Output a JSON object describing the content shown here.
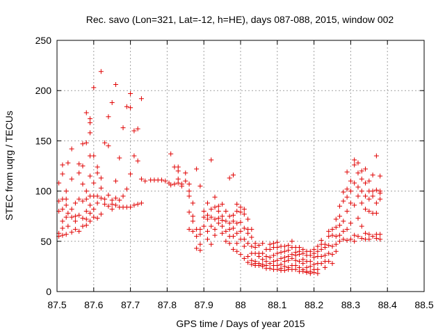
{
  "chart_data": {
    "type": "scatter",
    "title": "Rec. savo (Lon=321, Lat=-12, h=HE), days 087-088, 2015, window 002",
    "xlabel": "GPS time / Days of year 2015",
    "ylabel": "STEC from uqrg / TECUs",
    "xlim": [
      87.5,
      88.5
    ],
    "ylim": [
      0,
      250
    ],
    "x_ticks": [
      "87.5",
      "87.6",
      "87.7",
      "87.8",
      "87.9",
      "88",
      "88.1",
      "88.2",
      "88.3",
      "88.4",
      "88.5"
    ],
    "y_ticks": [
      "0",
      "50",
      "100",
      "150",
      "200",
      "250"
    ],
    "grid": true,
    "marker": "plus",
    "color": "#e00000",
    "points": [
      [
        87.505,
        55
      ],
      [
        87.505,
        58
      ],
      [
        87.505,
        80
      ],
      [
        87.505,
        90
      ],
      [
        87.505,
        108
      ],
      [
        87.515,
        117
      ],
      [
        87.515,
        126
      ],
      [
        87.515,
        92
      ],
      [
        87.515,
        82
      ],
      [
        87.515,
        70
      ],
      [
        87.515,
        63
      ],
      [
        87.515,
        56
      ],
      [
        87.525,
        74
      ],
      [
        87.525,
        86
      ],
      [
        87.525,
        92
      ],
      [
        87.525,
        100
      ],
      [
        87.525,
        57
      ],
      [
        87.53,
        128
      ],
      [
        87.53,
        65
      ],
      [
        87.53,
        78
      ],
      [
        87.54,
        142
      ],
      [
        87.54,
        112
      ],
      [
        87.54,
        82
      ],
      [
        87.54,
        74
      ],
      [
        87.54,
        59
      ],
      [
        87.55,
        75
      ],
      [
        87.55,
        70
      ],
      [
        87.55,
        88
      ],
      [
        87.55,
        62
      ],
      [
        87.56,
        127
      ],
      [
        87.56,
        118
      ],
      [
        87.56,
        92
      ],
      [
        87.56,
        76
      ],
      [
        87.56,
        60
      ],
      [
        87.57,
        147
      ],
      [
        87.57,
        125
      ],
      [
        87.57,
        107
      ],
      [
        87.57,
        90
      ],
      [
        87.57,
        73
      ],
      [
        87.57,
        65
      ],
      [
        87.58,
        148
      ],
      [
        87.58,
        178
      ],
      [
        87.58,
        100
      ],
      [
        87.58,
        92
      ],
      [
        87.58,
        80
      ],
      [
        87.58,
        72
      ],
      [
        87.58,
        66
      ],
      [
        87.59,
        158
      ],
      [
        87.59,
        168
      ],
      [
        87.59,
        172
      ],
      [
        87.59,
        135
      ],
      [
        87.59,
        115
      ],
      [
        87.59,
        95
      ],
      [
        87.59,
        86
      ],
      [
        87.59,
        78
      ],
      [
        87.59,
        70
      ],
      [
        87.6,
        203
      ],
      [
        87.6,
        135
      ],
      [
        87.6,
        108
      ],
      [
        87.6,
        95
      ],
      [
        87.6,
        82
      ],
      [
        87.6,
        74
      ],
      [
        87.61,
        124
      ],
      [
        87.61,
        118
      ],
      [
        87.61,
        95
      ],
      [
        87.61,
        88
      ],
      [
        87.61,
        73
      ],
      [
        87.62,
        219
      ],
      [
        87.62,
        113
      ],
      [
        87.62,
        103
      ],
      [
        87.62,
        93
      ],
      [
        87.62,
        77
      ],
      [
        87.63,
        148
      ],
      [
        87.63,
        92
      ],
      [
        87.63,
        87
      ],
      [
        87.64,
        145
      ],
      [
        87.64,
        174
      ],
      [
        87.64,
        96
      ],
      [
        87.64,
        85
      ],
      [
        87.65,
        188
      ],
      [
        87.65,
        91
      ],
      [
        87.65,
        87
      ],
      [
        87.65,
        82
      ],
      [
        87.66,
        206
      ],
      [
        87.66,
        110
      ],
      [
        87.66,
        93
      ],
      [
        87.66,
        86
      ],
      [
        87.67,
        133
      ],
      [
        87.67,
        91
      ],
      [
        87.67,
        84
      ],
      [
        87.68,
        163
      ],
      [
        87.68,
        84
      ],
      [
        87.68,
        95
      ],
      [
        87.69,
        184
      ],
      [
        87.69,
        102
      ],
      [
        87.69,
        84
      ],
      [
        87.7,
        183
      ],
      [
        87.7,
        197
      ],
      [
        87.7,
        117
      ],
      [
        87.7,
        84
      ],
      [
        87.71,
        160
      ],
      [
        87.71,
        135
      ],
      [
        87.71,
        86
      ],
      [
        87.72,
        162
      ],
      [
        87.72,
        130
      ],
      [
        87.72,
        87
      ],
      [
        87.73,
        192
      ],
      [
        87.73,
        112
      ],
      [
        87.73,
        88
      ],
      [
        87.74,
        110
      ],
      [
        87.755,
        111
      ],
      [
        87.765,
        111
      ],
      [
        87.775,
        111
      ],
      [
        87.785,
        111
      ],
      [
        87.795,
        110
      ],
      [
        87.805,
        108
      ],
      [
        87.81,
        106
      ],
      [
        87.81,
        137
      ],
      [
        87.82,
        124
      ],
      [
        87.82,
        107
      ],
      [
        87.83,
        124
      ],
      [
        87.83,
        120
      ],
      [
        87.83,
        112
      ],
      [
        87.83,
        108
      ],
      [
        87.84,
        105
      ],
      [
        87.84,
        107
      ],
      [
        87.85,
        110
      ],
      [
        87.85,
        118
      ],
      [
        87.86,
        107
      ],
      [
        87.86,
        100
      ],
      [
        87.86,
        95
      ],
      [
        87.86,
        79
      ],
      [
        87.86,
        62
      ],
      [
        87.87,
        88
      ],
      [
        87.87,
        75
      ],
      [
        87.87,
        70
      ],
      [
        87.87,
        60
      ],
      [
        87.88,
        122
      ],
      [
        87.88,
        62
      ],
      [
        87.88,
        55
      ],
      [
        87.88,
        43
      ],
      [
        87.89,
        105
      ],
      [
        87.89,
        62
      ],
      [
        87.89,
        57
      ],
      [
        87.89,
        47
      ],
      [
        87.89,
        41
      ],
      [
        87.9,
        80
      ],
      [
        87.9,
        74
      ],
      [
        87.9,
        65
      ],
      [
        87.91,
        88
      ],
      [
        87.91,
        76
      ],
      [
        87.91,
        72
      ],
      [
        87.91,
        60
      ],
      [
        87.91,
        52
      ],
      [
        87.92,
        131
      ],
      [
        87.92,
        82
      ],
      [
        87.92,
        74
      ],
      [
        87.92,
        65
      ],
      [
        87.92,
        47
      ],
      [
        87.93,
        94
      ],
      [
        87.93,
        84
      ],
      [
        87.93,
        72
      ],
      [
        87.93,
        62
      ],
      [
        87.93,
        56
      ],
      [
        87.94,
        85
      ],
      [
        87.94,
        80
      ],
      [
        87.94,
        73
      ],
      [
        87.94,
        68
      ],
      [
        87.95,
        87
      ],
      [
        87.95,
        75
      ],
      [
        87.95,
        71
      ],
      [
        87.95,
        65
      ],
      [
        87.95,
        58
      ],
      [
        87.96,
        80
      ],
      [
        87.96,
        70
      ],
      [
        87.96,
        60
      ],
      [
        87.96,
        50
      ],
      [
        87.97,
        113
      ],
      [
        87.97,
        75
      ],
      [
        87.97,
        68
      ],
      [
        87.97,
        62
      ],
      [
        87.97,
        55
      ],
      [
        87.97,
        48
      ],
      [
        87.98,
        116
      ],
      [
        87.98,
        76
      ],
      [
        87.98,
        70
      ],
      [
        87.98,
        63
      ],
      [
        87.98,
        55
      ],
      [
        87.98,
        42
      ],
      [
        87.99,
        87
      ],
      [
        87.99,
        80
      ],
      [
        87.99,
        68
      ],
      [
        87.99,
        58
      ],
      [
        87.99,
        48
      ],
      [
        87.99,
        40
      ],
      [
        88.0,
        84
      ],
      [
        88.0,
        79
      ],
      [
        88.0,
        69
      ],
      [
        88.0,
        60
      ],
      [
        88.0,
        52
      ],
      [
        88.0,
        37
      ],
      [
        88.01,
        82
      ],
      [
        88.01,
        77
      ],
      [
        88.01,
        63
      ],
      [
        88.01,
        52
      ],
      [
        88.01,
        45
      ],
      [
        88.01,
        33
      ],
      [
        88.02,
        72
      ],
      [
        88.02,
        62
      ],
      [
        88.02,
        58
      ],
      [
        88.02,
        48
      ],
      [
        88.02,
        35
      ],
      [
        88.02,
        29
      ],
      [
        88.03,
        62
      ],
      [
        88.03,
        54
      ],
      [
        88.03,
        45
      ],
      [
        88.03,
        38
      ],
      [
        88.03,
        31
      ],
      [
        88.03,
        27
      ],
      [
        88.04,
        48
      ],
      [
        88.04,
        44
      ],
      [
        88.04,
        38
      ],
      [
        88.04,
        30
      ],
      [
        88.04,
        28
      ],
      [
        88.04,
        26
      ],
      [
        88.05,
        46
      ],
      [
        88.05,
        38
      ],
      [
        88.05,
        35
      ],
      [
        88.05,
        28
      ],
      [
        88.05,
        26
      ],
      [
        88.06,
        48
      ],
      [
        88.06,
        38
      ],
      [
        88.06,
        32
      ],
      [
        88.06,
        27
      ],
      [
        88.06,
        25
      ],
      [
        88.07,
        42
      ],
      [
        88.07,
        35
      ],
      [
        88.07,
        30
      ],
      [
        88.07,
        26
      ],
      [
        88.07,
        23
      ],
      [
        88.08,
        47
      ],
      [
        88.08,
        42
      ],
      [
        88.08,
        34
      ],
      [
        88.08,
        28
      ],
      [
        88.08,
        23
      ],
      [
        88.09,
        48
      ],
      [
        88.09,
        44
      ],
      [
        88.09,
        36
      ],
      [
        88.09,
        30
      ],
      [
        88.09,
        26
      ],
      [
        88.09,
        22
      ],
      [
        88.1,
        49
      ],
      [
        88.1,
        44
      ],
      [
        88.1,
        38
      ],
      [
        88.1,
        31
      ],
      [
        88.1,
        26
      ],
      [
        88.1,
        22
      ],
      [
        88.11,
        45
      ],
      [
        88.11,
        39
      ],
      [
        88.11,
        33
      ],
      [
        88.11,
        27
      ],
      [
        88.11,
        23
      ],
      [
        88.11,
        21
      ],
      [
        88.12,
        45
      ],
      [
        88.12,
        40
      ],
      [
        88.12,
        34
      ],
      [
        88.12,
        30
      ],
      [
        88.12,
        25
      ],
      [
        88.12,
        21
      ],
      [
        88.13,
        46
      ],
      [
        88.13,
        41
      ],
      [
        88.13,
        35
      ],
      [
        88.13,
        31
      ],
      [
        88.13,
        24
      ],
      [
        88.13,
        22
      ],
      [
        88.14,
        50
      ],
      [
        88.14,
        44
      ],
      [
        88.14,
        37
      ],
      [
        88.14,
        33
      ],
      [
        88.14,
        26
      ],
      [
        88.14,
        22
      ],
      [
        88.15,
        44
      ],
      [
        88.15,
        39
      ],
      [
        88.15,
        36
      ],
      [
        88.15,
        31
      ],
      [
        88.15,
        26
      ],
      [
        88.15,
        22
      ],
      [
        88.16,
        44
      ],
      [
        88.16,
        40
      ],
      [
        88.16,
        37
      ],
      [
        88.16,
        30
      ],
      [
        88.16,
        24
      ],
      [
        88.16,
        20
      ],
      [
        88.17,
        42
      ],
      [
        88.17,
        38
      ],
      [
        88.17,
        32
      ],
      [
        88.17,
        28
      ],
      [
        88.17,
        22
      ],
      [
        88.17,
        20
      ],
      [
        88.18,
        40
      ],
      [
        88.18,
        36
      ],
      [
        88.18,
        30
      ],
      [
        88.18,
        24
      ],
      [
        88.18,
        20
      ],
      [
        88.18,
        19
      ],
      [
        88.19,
        40
      ],
      [
        88.19,
        36
      ],
      [
        88.19,
        30
      ],
      [
        88.19,
        25
      ],
      [
        88.19,
        20
      ],
      [
        88.19,
        18
      ],
      [
        88.2,
        42
      ],
      [
        88.2,
        38
      ],
      [
        88.2,
        34
      ],
      [
        88.2,
        27
      ],
      [
        88.2,
        22
      ],
      [
        88.2,
        19
      ],
      [
        88.21,
        45
      ],
      [
        88.21,
        40
      ],
      [
        88.21,
        35
      ],
      [
        88.21,
        28
      ],
      [
        88.21,
        22
      ],
      [
        88.21,
        18
      ],
      [
        88.22,
        51
      ],
      [
        88.22,
        47
      ],
      [
        88.22,
        42
      ],
      [
        88.22,
        35
      ],
      [
        88.22,
        28
      ],
      [
        88.23,
        47
      ],
      [
        88.23,
        44
      ],
      [
        88.23,
        36
      ],
      [
        88.23,
        30
      ],
      [
        88.23,
        24
      ],
      [
        88.24,
        60
      ],
      [
        88.24,
        55
      ],
      [
        88.24,
        46
      ],
      [
        88.24,
        38
      ],
      [
        88.24,
        30
      ],
      [
        88.25,
        62
      ],
      [
        88.25,
        56
      ],
      [
        88.25,
        45
      ],
      [
        88.25,
        37
      ],
      [
        88.25,
        28
      ],
      [
        88.26,
        72
      ],
      [
        88.26,
        64
      ],
      [
        88.26,
        55
      ],
      [
        88.26,
        47
      ],
      [
        88.26,
        40
      ],
      [
        88.27,
        85
      ],
      [
        88.27,
        75
      ],
      [
        88.27,
        66
      ],
      [
        88.27,
        56
      ],
      [
        88.27,
        50
      ],
      [
        88.28,
        99
      ],
      [
        88.28,
        90
      ],
      [
        88.28,
        70
      ],
      [
        88.28,
        60
      ],
      [
        88.28,
        52
      ],
      [
        88.29,
        119
      ],
      [
        88.29,
        102
      ],
      [
        88.29,
        94
      ],
      [
        88.29,
        80
      ],
      [
        88.29,
        62
      ],
      [
        88.29,
        51
      ],
      [
        88.3,
        110
      ],
      [
        88.3,
        100
      ],
      [
        88.3,
        88
      ],
      [
        88.3,
        68
      ],
      [
        88.3,
        52
      ],
      [
        88.31,
        131
      ],
      [
        88.31,
        126
      ],
      [
        88.31,
        108
      ],
      [
        88.31,
        86
      ],
      [
        88.31,
        56
      ],
      [
        88.31,
        50
      ],
      [
        88.32,
        128
      ],
      [
        88.32,
        118
      ],
      [
        88.32,
        104
      ],
      [
        88.32,
        95
      ],
      [
        88.32,
        73
      ],
      [
        88.32,
        55
      ],
      [
        88.33,
        120
      ],
      [
        88.33,
        112
      ],
      [
        88.33,
        100
      ],
      [
        88.33,
        88
      ],
      [
        88.33,
        65
      ],
      [
        88.33,
        53
      ],
      [
        88.34,
        122
      ],
      [
        88.34,
        108
      ],
      [
        88.34,
        95
      ],
      [
        88.34,
        82
      ],
      [
        88.34,
        58
      ],
      [
        88.34,
        52
      ],
      [
        88.35,
        110
      ],
      [
        88.35,
        100
      ],
      [
        88.35,
        92
      ],
      [
        88.35,
        80
      ],
      [
        88.35,
        57
      ],
      [
        88.35,
        52
      ],
      [
        88.36,
        116
      ],
      [
        88.36,
        100
      ],
      [
        88.36,
        95
      ],
      [
        88.36,
        78
      ],
      [
        88.36,
        55
      ],
      [
        88.37,
        135
      ],
      [
        88.37,
        101
      ],
      [
        88.37,
        88
      ],
      [
        88.37,
        78
      ],
      [
        88.37,
        57
      ],
      [
        88.37,
        53
      ],
      [
        88.38,
        115
      ],
      [
        88.38,
        100
      ],
      [
        88.38,
        98
      ],
      [
        88.38,
        92
      ],
      [
        88.38,
        57
      ],
      [
        88.38,
        52
      ]
    ]
  }
}
